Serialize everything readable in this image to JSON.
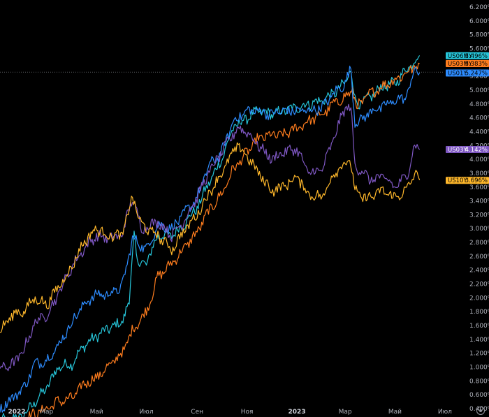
{
  "chart_data": {
    "type": "line",
    "x_ticks": [
      "2022",
      "Мар",
      "Май",
      "Июл",
      "Сен",
      "Ноя",
      "2023",
      "Мар",
      "Май",
      "Июл"
    ],
    "x_ticks_bold": [
      "2022",
      "2023"
    ],
    "y_ticks": [
      "0.400%",
      "0.600%",
      "0.800%",
      "1.000%",
      "1.200%",
      "1.400%",
      "1.600%",
      "1.800%",
      "2.000%",
      "2.200%",
      "2.400%",
      "2.600%",
      "2.800%",
      "3.000%",
      "3.200%",
      "3.400%",
      "3.600%",
      "3.800%",
      "4.000%",
      "4.200%",
      "4.400%",
      "4.600%",
      "4.800%",
      "5.000%",
      "5.200%",
      "5.400%",
      "5.600%",
      "5.800%",
      "6.000%",
      "6.200%"
    ],
    "ylim": [
      0.35,
      6.25
    ],
    "xlim": [
      "2022-01-03",
      "2023-07-25"
    ],
    "x_end": "2023-05-31",
    "crosshair_value": 5.26,
    "grid": false,
    "series": [
      {
        "name": "US06MY",
        "color": "#26c6da",
        "last_label": "5.496%",
        "points": [
          [
            "2022-01-03",
            0.22
          ],
          [
            "2022-02-01",
            0.3
          ],
          [
            "2022-03-01",
            0.7
          ],
          [
            "2022-03-15",
            1.0
          ],
          [
            "2022-04-01",
            1.05
          ],
          [
            "2022-04-15",
            1.3
          ],
          [
            "2022-05-01",
            1.45
          ],
          [
            "2022-05-15",
            1.55
          ],
          [
            "2022-06-01",
            1.65
          ],
          [
            "2022-06-10",
            1.95
          ],
          [
            "2022-06-16",
            2.95
          ],
          [
            "2022-06-20",
            2.5
          ],
          [
            "2022-07-01",
            2.5
          ],
          [
            "2022-07-15",
            2.9
          ],
          [
            "2022-08-01",
            2.9
          ],
          [
            "2022-08-15",
            3.05
          ],
          [
            "2022-09-01",
            3.3
          ],
          [
            "2022-09-15",
            3.65
          ],
          [
            "2022-10-01",
            4.0
          ],
          [
            "2022-10-15",
            4.45
          ],
          [
            "2022-11-01",
            4.6
          ],
          [
            "2022-11-15",
            4.7
          ],
          [
            "2022-12-01",
            4.65
          ],
          [
            "2022-12-15",
            4.7
          ],
          [
            "2023-01-01",
            4.75
          ],
          [
            "2023-01-15",
            4.8
          ],
          [
            "2023-02-01",
            4.85
          ],
          [
            "2023-02-15",
            4.95
          ],
          [
            "2023-03-01",
            5.1
          ],
          [
            "2023-03-08",
            5.3
          ],
          [
            "2023-03-13",
            4.85
          ],
          [
            "2023-03-20",
            4.8
          ],
          [
            "2023-04-01",
            4.9
          ],
          [
            "2023-04-15",
            5.05
          ],
          [
            "2023-05-01",
            5.1
          ],
          [
            "2023-05-15",
            5.3
          ],
          [
            "2023-05-31",
            5.5
          ]
        ]
      },
      {
        "name": "US03MY",
        "color": "#ff7d1e",
        "last_label": "5.383%",
        "points": [
          [
            "2022-01-03",
            0.08
          ],
          [
            "2022-02-01",
            0.25
          ],
          [
            "2022-03-01",
            0.4
          ],
          [
            "2022-03-15",
            0.5
          ],
          [
            "2022-04-01",
            0.55
          ],
          [
            "2022-04-15",
            0.75
          ],
          [
            "2022-05-01",
            0.85
          ],
          [
            "2022-05-15",
            1.0
          ],
          [
            "2022-06-01",
            1.2
          ],
          [
            "2022-06-15",
            1.55
          ],
          [
            "2022-07-01",
            1.8
          ],
          [
            "2022-07-15",
            2.3
          ],
          [
            "2022-08-01",
            2.5
          ],
          [
            "2022-08-15",
            2.7
          ],
          [
            "2022-09-01",
            2.95
          ],
          [
            "2022-09-15",
            3.25
          ],
          [
            "2022-10-01",
            3.5
          ],
          [
            "2022-10-15",
            3.85
          ],
          [
            "2022-11-01",
            4.1
          ],
          [
            "2022-11-15",
            4.3
          ],
          [
            "2022-12-01",
            4.35
          ],
          [
            "2022-12-15",
            4.35
          ],
          [
            "2023-01-01",
            4.45
          ],
          [
            "2023-01-15",
            4.55
          ],
          [
            "2023-02-01",
            4.65
          ],
          [
            "2023-02-15",
            4.8
          ],
          [
            "2023-03-01",
            4.9
          ],
          [
            "2023-03-10",
            5.0
          ],
          [
            "2023-03-15",
            4.75
          ],
          [
            "2023-04-01",
            4.95
          ],
          [
            "2023-04-15",
            5.05
          ],
          [
            "2023-05-01",
            5.15
          ],
          [
            "2023-05-15",
            5.25
          ],
          [
            "2023-05-31",
            5.38
          ]
        ]
      },
      {
        "name": "US01Y",
        "color": "#2d8cff",
        "last_label": "5.247%",
        "points": [
          [
            "2022-01-03",
            0.4
          ],
          [
            "2022-02-01",
            0.7
          ],
          [
            "2022-02-15",
            1.05
          ],
          [
            "2022-03-01",
            1.1
          ],
          [
            "2022-03-15",
            1.3
          ],
          [
            "2022-04-01",
            1.65
          ],
          [
            "2022-04-15",
            1.9
          ],
          [
            "2022-05-01",
            2.05
          ],
          [
            "2022-05-15",
            2.05
          ],
          [
            "2022-06-01",
            2.15
          ],
          [
            "2022-06-14",
            2.85
          ],
          [
            "2022-06-20",
            2.8
          ],
          [
            "2022-07-01",
            2.7
          ],
          [
            "2022-07-15",
            3.05
          ],
          [
            "2022-08-01",
            3.0
          ],
          [
            "2022-08-15",
            3.2
          ],
          [
            "2022-09-01",
            3.45
          ],
          [
            "2022-09-15",
            3.9
          ],
          [
            "2022-10-01",
            4.1
          ],
          [
            "2022-10-15",
            4.55
          ],
          [
            "2022-11-01",
            4.7
          ],
          [
            "2022-11-15",
            4.7
          ],
          [
            "2022-12-01",
            4.65
          ],
          [
            "2022-12-15",
            4.7
          ],
          [
            "2023-01-01",
            4.7
          ],
          [
            "2023-01-15",
            4.7
          ],
          [
            "2023-02-01",
            4.75
          ],
          [
            "2023-02-15",
            4.95
          ],
          [
            "2023-03-01",
            5.1
          ],
          [
            "2023-03-08",
            5.3
          ],
          [
            "2023-03-13",
            4.55
          ],
          [
            "2023-03-20",
            4.55
          ],
          [
            "2023-04-01",
            4.7
          ],
          [
            "2023-04-15",
            4.75
          ],
          [
            "2023-05-01",
            4.85
          ],
          [
            "2023-05-15",
            4.9
          ],
          [
            "2023-05-25",
            5.3
          ],
          [
            "2023-05-31",
            5.25
          ]
        ]
      },
      {
        "name": "US03Y",
        "color": "#7e57c2",
        "last_label": "4.142%",
        "points": [
          [
            "2022-01-03",
            0.98
          ],
          [
            "2022-01-20",
            1.05
          ],
          [
            "2022-02-01",
            1.25
          ],
          [
            "2022-02-15",
            1.65
          ],
          [
            "2022-03-01",
            1.75
          ],
          [
            "2022-03-15",
            2.05
          ],
          [
            "2022-04-01",
            2.45
          ],
          [
            "2022-04-15",
            2.7
          ],
          [
            "2022-05-01",
            2.9
          ],
          [
            "2022-05-15",
            2.85
          ],
          [
            "2022-06-01",
            2.9
          ],
          [
            "2022-06-14",
            3.45
          ],
          [
            "2022-06-25",
            3.0
          ],
          [
            "2022-07-15",
            3.1
          ],
          [
            "2022-08-01",
            2.9
          ],
          [
            "2022-08-15",
            3.1
          ],
          [
            "2022-09-01",
            3.45
          ],
          [
            "2022-09-15",
            3.8
          ],
          [
            "2022-10-01",
            4.1
          ],
          [
            "2022-10-20",
            4.45
          ],
          [
            "2022-11-01",
            4.4
          ],
          [
            "2022-11-15",
            4.2
          ],
          [
            "2022-12-01",
            4.0
          ],
          [
            "2022-12-15",
            4.1
          ],
          [
            "2023-01-01",
            4.15
          ],
          [
            "2023-01-15",
            3.8
          ],
          [
            "2023-02-01",
            3.85
          ],
          [
            "2023-02-15",
            4.3
          ],
          [
            "2023-03-01",
            4.75
          ],
          [
            "2023-03-08",
            4.75
          ],
          [
            "2023-03-13",
            3.9
          ],
          [
            "2023-03-20",
            3.85
          ],
          [
            "2023-04-01",
            3.7
          ],
          [
            "2023-04-15",
            3.75
          ],
          [
            "2023-05-01",
            3.6
          ],
          [
            "2023-05-15",
            3.75
          ],
          [
            "2023-05-25",
            4.2
          ],
          [
            "2023-05-31",
            4.14
          ]
        ]
      },
      {
        "name": "US10Y",
        "color": "#ffb82b",
        "last_label": "3.696%",
        "points": [
          [
            "2022-01-03",
            1.52
          ],
          [
            "2022-01-20",
            1.78
          ],
          [
            "2022-02-01",
            1.8
          ],
          [
            "2022-02-15",
            2.0
          ],
          [
            "2022-03-01",
            1.9
          ],
          [
            "2022-03-15",
            2.15
          ],
          [
            "2022-04-01",
            2.45
          ],
          [
            "2022-04-15",
            2.8
          ],
          [
            "2022-05-01",
            3.0
          ],
          [
            "2022-05-15",
            2.9
          ],
          [
            "2022-06-01",
            2.9
          ],
          [
            "2022-06-14",
            3.45
          ],
          [
            "2022-06-25",
            3.05
          ],
          [
            "2022-07-15",
            2.9
          ],
          [
            "2022-08-01",
            2.7
          ],
          [
            "2022-08-15",
            2.95
          ],
          [
            "2022-09-01",
            3.2
          ],
          [
            "2022-09-15",
            3.5
          ],
          [
            "2022-10-01",
            3.8
          ],
          [
            "2022-10-20",
            4.2
          ],
          [
            "2022-11-01",
            4.05
          ],
          [
            "2022-11-15",
            3.8
          ],
          [
            "2022-12-01",
            3.55
          ],
          [
            "2022-12-15",
            3.6
          ],
          [
            "2023-01-01",
            3.75
          ],
          [
            "2023-01-15",
            3.5
          ],
          [
            "2023-02-01",
            3.45
          ],
          [
            "2023-02-15",
            3.8
          ],
          [
            "2023-03-01",
            3.95
          ],
          [
            "2023-03-08",
            3.95
          ],
          [
            "2023-03-13",
            3.55
          ],
          [
            "2023-03-20",
            3.45
          ],
          [
            "2023-04-01",
            3.45
          ],
          [
            "2023-04-15",
            3.55
          ],
          [
            "2023-05-01",
            3.45
          ],
          [
            "2023-05-15",
            3.55
          ],
          [
            "2023-05-25",
            3.8
          ],
          [
            "2023-05-31",
            3.7
          ]
        ]
      }
    ]
  },
  "axis_colors": {
    "background": "#000000",
    "tick_text": "#b2b5be",
    "crosshair": "#9598a1"
  },
  "settings_icon": "gear-icon"
}
